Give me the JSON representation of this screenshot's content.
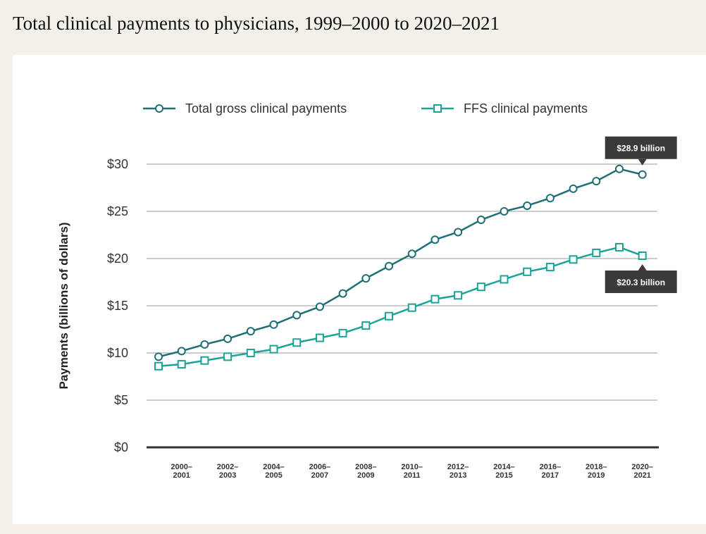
{
  "page": {
    "title": "Total clinical payments to physicians, 1999–2000 to 2020–2021"
  },
  "colors": {
    "background": "#f3f0ea",
    "card": "#ffffff",
    "total_series": "#1d6f76",
    "ffs_series": "#1aa397",
    "gridline": "#9a9a9a",
    "baseline": "#333333",
    "callout": "#3a3a3a"
  },
  "chart_data": {
    "type": "line",
    "title": "Total clinical payments to physicians, 1999–2000 to 2020–2021",
    "ylabel": "Payments (billions of dollars)",
    "xlabel": "",
    "ylim": [
      0,
      30
    ],
    "yticks": [
      0,
      5,
      10,
      15,
      20,
      25,
      30
    ],
    "ytick_labels": [
      "$0",
      "$5",
      "$10",
      "$15",
      "$20",
      "$25",
      "$30"
    ],
    "x": [
      "1999–2000",
      "2000–2001",
      "2001–2002",
      "2002–2003",
      "2003–2004",
      "2004–2005",
      "2005–2006",
      "2006–2007",
      "2007–2008",
      "2008–2009",
      "2009–2010",
      "2010–2011",
      "2011–2012",
      "2012–2013",
      "2013–2014",
      "2014–2015",
      "2015–2016",
      "2016–2017",
      "2017–2018",
      "2018–2019",
      "2019–2020",
      "2020–2021"
    ],
    "xtick_labels": [
      {
        "line1": "2000–",
        "line2": "2001",
        "index": 1
      },
      {
        "line1": "2002–",
        "line2": "2003",
        "index": 3
      },
      {
        "line1": "2004–",
        "line2": "2005",
        "index": 5
      },
      {
        "line1": "2006–",
        "line2": "2007",
        "index": 7
      },
      {
        "line1": "2008–",
        "line2": "2009",
        "index": 9
      },
      {
        "line1": "2010–",
        "line2": "2011",
        "index": 11
      },
      {
        "line1": "2012–",
        "line2": "2013",
        "index": 13
      },
      {
        "line1": "2014–",
        "line2": "2015",
        "index": 15
      },
      {
        "line1": "2016–",
        "line2": "2017",
        "index": 17
      },
      {
        "line1": "2018–",
        "line2": "2019",
        "index": 19
      },
      {
        "line1": "2020–",
        "line2": "2021",
        "index": 21
      }
    ],
    "grid": true,
    "legend_position": "top",
    "series": [
      {
        "name": "Total gross clinical payments",
        "marker": "circle",
        "color": "#1d6f76",
        "values": [
          9.6,
          10.2,
          10.9,
          11.5,
          12.3,
          13.0,
          14.0,
          14.9,
          16.3,
          17.9,
          19.2,
          20.5,
          22.0,
          22.8,
          24.1,
          25.0,
          25.6,
          26.4,
          27.4,
          28.2,
          29.5,
          28.9
        ]
      },
      {
        "name": "FFS clinical payments",
        "marker": "square",
        "color": "#1aa397",
        "values": [
          8.6,
          8.8,
          9.2,
          9.6,
          10.0,
          10.4,
          11.1,
          11.6,
          12.1,
          12.9,
          13.9,
          14.8,
          15.7,
          16.1,
          17.0,
          17.8,
          18.6,
          19.1,
          19.9,
          20.6,
          21.2,
          20.3
        ]
      }
    ],
    "annotations": [
      {
        "text": "$28.9 billion",
        "series": 0,
        "index": 21,
        "placement": "above"
      },
      {
        "text": "$20.3 billion",
        "series": 1,
        "index": 21,
        "placement": "below"
      }
    ]
  }
}
